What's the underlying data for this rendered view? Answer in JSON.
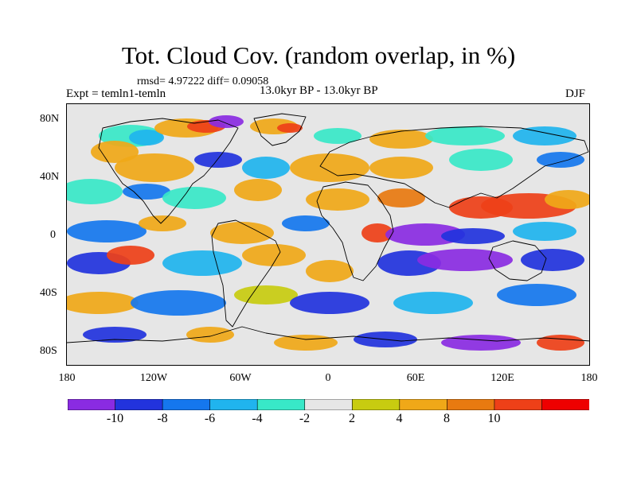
{
  "title": "Tot. Cloud Cov. (random overlap, in %)",
  "stats": "rmsd= 4.97222 diff= 0.09058",
  "experiment": "Expt = temln1-temln",
  "period": "13.0kyr BP - 13.0kyr BP",
  "season": "DJF",
  "lat_labels": [
    "80N",
    "40N",
    "0",
    "40S",
    "80S"
  ],
  "lon_labels": [
    "180",
    "120W",
    "60W",
    "0",
    "60E",
    "120E",
    "180"
  ],
  "colorbar": {
    "labels": [
      "-10",
      "-8",
      "-6",
      "-4",
      "-2",
      "2",
      "4",
      "8",
      "10"
    ],
    "colors": [
      "#8a2be2",
      "#2233dd",
      "#1577ee",
      "#20b4ee",
      "#38e8c8",
      "#e6e6e6",
      "#c8cc10",
      "#f0a818",
      "#e87a10",
      "#ee4018",
      "#ee0000"
    ]
  }
}
